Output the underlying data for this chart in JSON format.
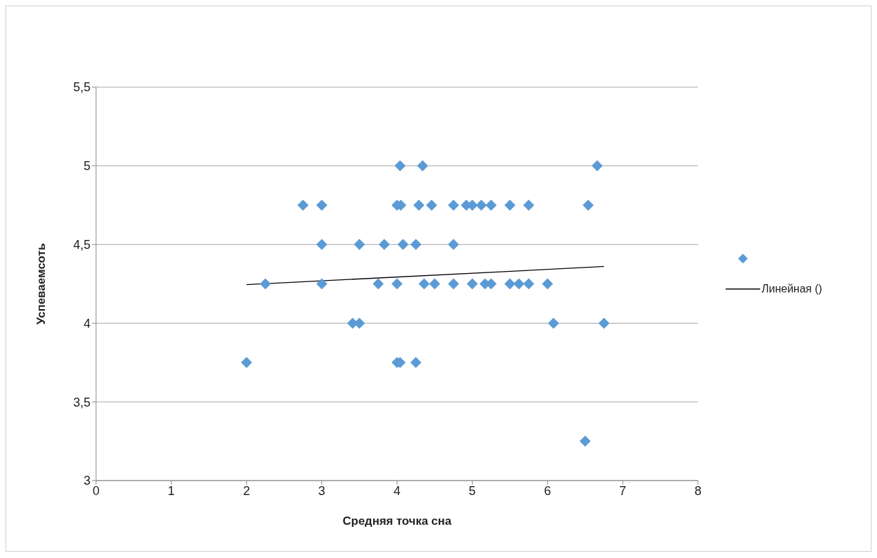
{
  "chart_data": {
    "type": "scatter",
    "xlabel": "Средняя точка сна",
    "ylabel": "Успеваемсоть",
    "xlim": [
      0,
      8
    ],
    "xticks": [
      0,
      1,
      2,
      3,
      4,
      5,
      6,
      7,
      8
    ],
    "ylim": [
      3,
      5.5
    ],
    "yticks": [
      3,
      {
        "value": 3.5,
        "label": "3,5"
      },
      4,
      {
        "value": 4.5,
        "label": "4,5"
      },
      5,
      {
        "value": 5.5,
        "label": "5,5"
      }
    ],
    "grid": "y",
    "legend": "right",
    "marker": "diamond",
    "series": [
      {
        "color": "#5b9bd5",
        "x": [
          4.04,
          4.34,
          6.66,
          2.75,
          3.0,
          4.0,
          4.05,
          4.29,
          4.46,
          4.75,
          4.92,
          5.0,
          5.12,
          5.25,
          5.5,
          5.75,
          6.54,
          3.0,
          3.5,
          3.83,
          4.08,
          4.25,
          4.75,
          2.25,
          3.0,
          3.75,
          4.0,
          4.36,
          4.5,
          4.75,
          5.0,
          5.17,
          5.25,
          5.5,
          5.62,
          5.75,
          6.0,
          3.41,
          3.5,
          6.08,
          6.75,
          2.0,
          4.0,
          4.04,
          4.25,
          6.5
        ],
        "values": [
          5,
          5,
          5,
          4.75,
          4.75,
          4.75,
          4.75,
          4.75,
          4.75,
          4.75,
          4.75,
          4.75,
          4.75,
          4.75,
          4.75,
          4.75,
          4.75,
          4.5,
          4.5,
          4.5,
          4.5,
          4.5,
          4.5,
          4.25,
          4.25,
          4.25,
          4.25,
          4.25,
          4.25,
          4.25,
          4.25,
          4.25,
          4.25,
          4.25,
          4.25,
          4.25,
          4.25,
          4,
          4,
          4,
          4,
          3.75,
          3.75,
          3.75,
          3.75,
          3.25
        ]
      },
      {
        "type": "line",
        "marker": "none",
        "name": "Линейная ()",
        "color": "#000000",
        "x": [
          2,
          6.75
        ],
        "values": [
          4.245,
          4.36
        ]
      }
    ]
  }
}
